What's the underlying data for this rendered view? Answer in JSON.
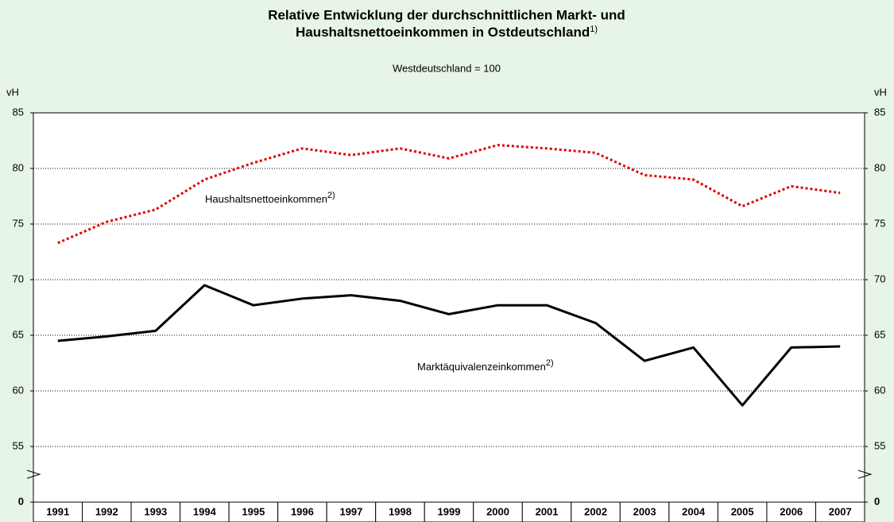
{
  "chart_data": {
    "type": "line",
    "title": [
      "Relative Entwicklung der durchschnittlichen Markt- und",
      "Haushaltsnettoeinkommen in Ostdeutschland"
    ],
    "title_note": "1)",
    "subtitle": "Westdeutschland = 100",
    "y_label": "vH",
    "categories": [
      "1991",
      "1992",
      "1993",
      "1994",
      "1995",
      "1996",
      "1997",
      "1998",
      "1999",
      "2000",
      "2001",
      "2002",
      "2003",
      "2004",
      "2005",
      "2006",
      "2007"
    ],
    "series": [
      {
        "name": "Haushaltsnettoeinkommen",
        "name_note": "2)",
        "color": "#e00000",
        "dashed": true,
        "values": [
          73.3,
          75.2,
          76.3,
          79.0,
          80.5,
          81.8,
          81.2,
          81.8,
          80.9,
          82.1,
          81.8,
          81.4,
          79.4,
          79.0,
          76.6,
          78.4,
          77.8
        ]
      },
      {
        "name": "Marktäquivalenzeinkommen",
        "name_note": "2)",
        "color": "#000000",
        "dashed": false,
        "values": [
          64.5,
          64.9,
          65.4,
          69.5,
          67.7,
          68.3,
          68.6,
          68.1,
          66.9,
          67.7,
          67.7,
          66.1,
          62.7,
          63.9,
          58.7,
          63.9,
          64.0
        ]
      }
    ],
    "ylim": [
      0,
      85
    ],
    "axis_break": [
      0,
      50
    ],
    "yticks": [
      0,
      55,
      60,
      65,
      70,
      75,
      80,
      85
    ],
    "grid": true
  }
}
